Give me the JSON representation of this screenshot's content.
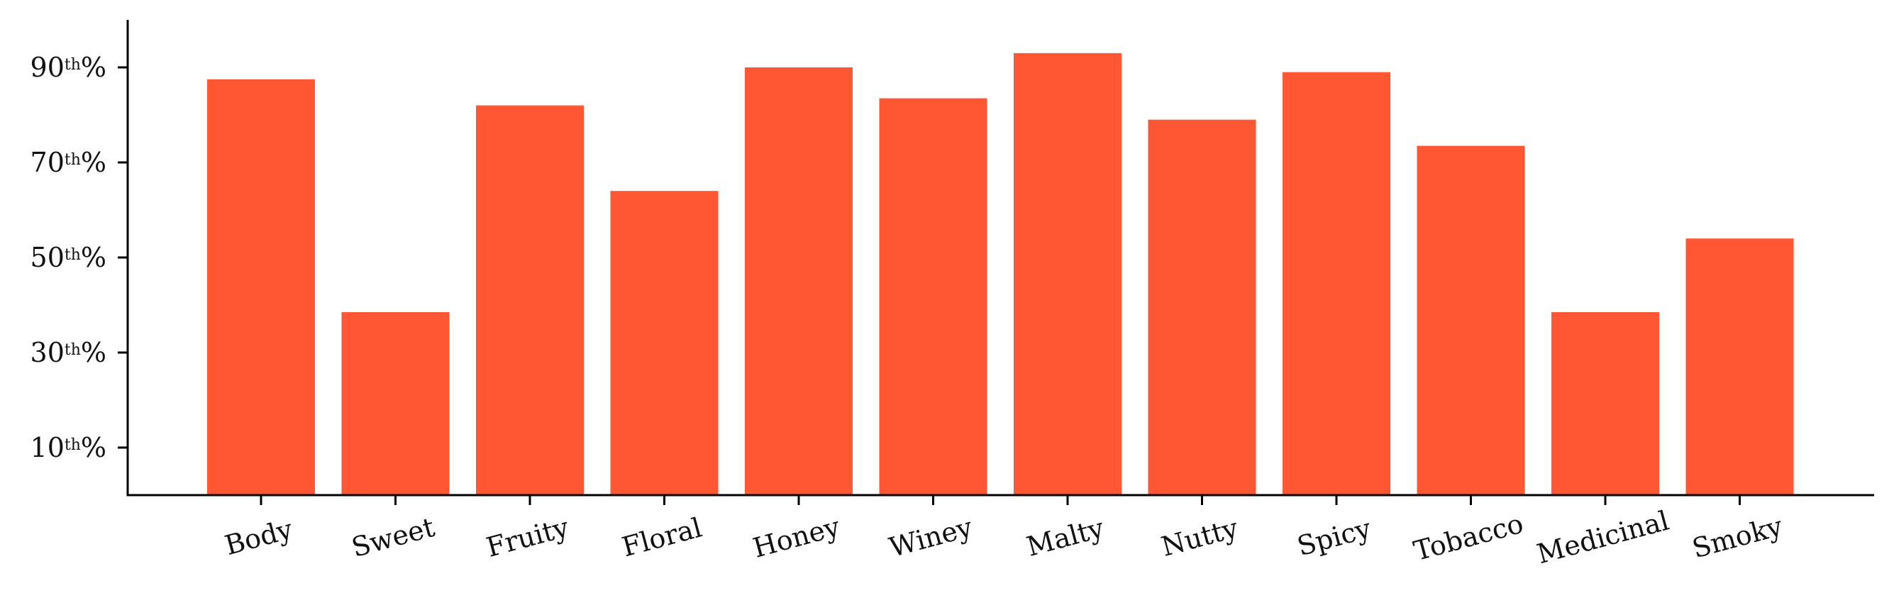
{
  "chart_data": {
    "type": "bar",
    "title": "",
    "xlabel": "",
    "ylabel": "",
    "categories": [
      "Body",
      "Sweet",
      "Fruity",
      "Floral",
      "Honey",
      "Winey",
      "Malty",
      "Nutty",
      "Spicy",
      "Tobacco",
      "Medicinal",
      "Smoky"
    ],
    "values": [
      87.5,
      38.5,
      82,
      64,
      90,
      83.5,
      93,
      79,
      89,
      73.5,
      38.5,
      54
    ],
    "ylim": [
      0,
      100
    ],
    "yticks": [
      {
        "value": 10,
        "num": "10",
        "sup": "th",
        "suffix": "%"
      },
      {
        "value": 30,
        "num": "30",
        "sup": "th",
        "suffix": "%"
      },
      {
        "value": 50,
        "num": "50",
        "sup": "th",
        "suffix": "%"
      },
      {
        "value": 70,
        "num": "70",
        "sup": "th",
        "suffix": "%"
      },
      {
        "value": 90,
        "num": "90",
        "sup": "th",
        "suffix": "%"
      }
    ],
    "bar_color": "#ff5733",
    "grid": false,
    "x_tick_rotation_deg": -15
  }
}
